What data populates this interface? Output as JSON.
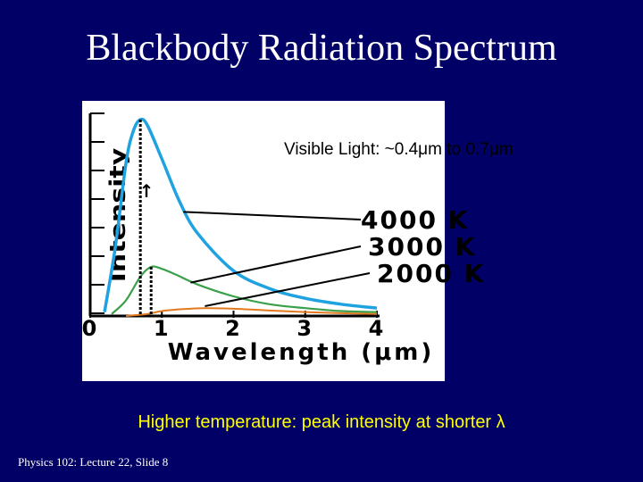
{
  "slide": {
    "title": "Blackbody Radiation Spectrum",
    "caption": "Higher temperature: peak intensity at shorter λ",
    "footer": "Physics 102: Lecture 22, Slide 8"
  },
  "chart_data": {
    "type": "line",
    "xlabel": "Wavelength (μm)",
    "ylabel": "Intensity",
    "ylabel_arrow": "↑",
    "annotation": "Visible Light: ~0.4μm to 0.7μm",
    "xlim": [
      0,
      4
    ],
    "ylim": [
      0,
      1
    ],
    "x_ticks": [
      "0",
      "1",
      "2",
      "3",
      "4"
    ],
    "series": [
      {
        "name": "4000 K",
        "color": "#1ea3e0",
        "x": [
          0.2,
          0.35,
          0.5,
          0.6,
          0.7,
          0.8,
          1.0,
          1.25,
          1.5,
          2.0,
          2.5,
          3.0,
          3.5,
          4.0
        ],
        "y": [
          0.02,
          0.35,
          0.78,
          0.94,
          1.0,
          0.97,
          0.8,
          0.58,
          0.42,
          0.23,
          0.14,
          0.09,
          0.06,
          0.04
        ]
      },
      {
        "name": "3000 K",
        "color": "#3aa04a",
        "x": [
          0.3,
          0.5,
          0.7,
          0.85,
          1.0,
          1.2,
          1.5,
          2.0,
          2.5,
          3.0,
          3.5,
          4.0
        ],
        "y": [
          0.01,
          0.08,
          0.2,
          0.25,
          0.24,
          0.21,
          0.16,
          0.1,
          0.06,
          0.04,
          0.025,
          0.02
        ]
      },
      {
        "name": "2000 K",
        "color": "#e07a20",
        "x": [
          0.5,
          0.8,
          1.0,
          1.3,
          1.6,
          2.0,
          2.5,
          3.0,
          3.5,
          4.0
        ],
        "y": [
          0.0,
          0.01,
          0.025,
          0.035,
          0.04,
          0.037,
          0.028,
          0.02,
          0.014,
          0.01
        ]
      }
    ],
    "visible_band": [
      0.4,
      0.7
    ]
  }
}
